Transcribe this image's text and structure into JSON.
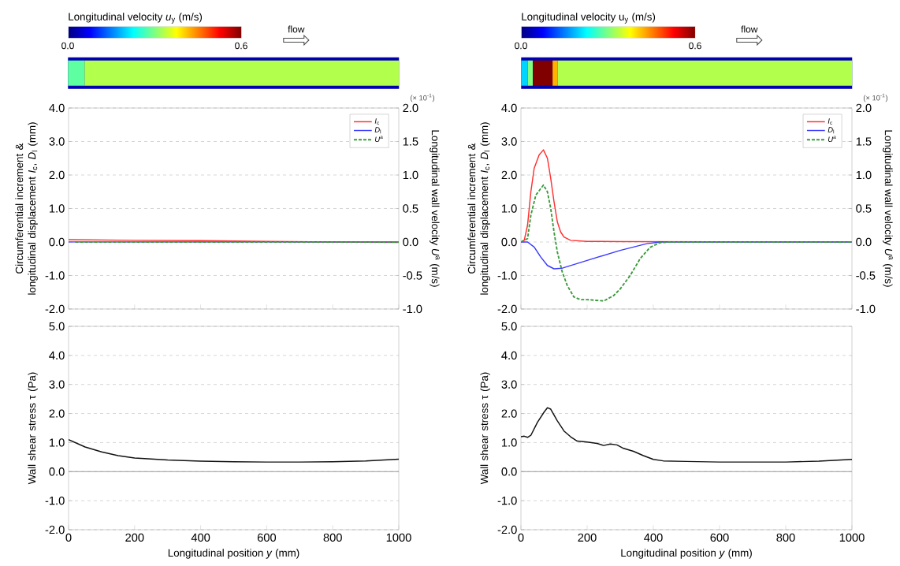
{
  "chart_data": [
    {
      "type": "other",
      "title": "Longitudinal velocity *u*$_{y}$ (m/s)",
      "annotations": [
        "0.0",
        "0.6",
        "flow"
      ]
    },
    {
      "type": "other",
      "title": "Longitudinal velocity u$_{y}$ (m/s)",
      "annotations": [
        "0.0",
        "0.6",
        "flow"
      ]
    },
    {
      "type": "line",
      "ylabel": "Circumferential increment & longitudinal displacement *I*$_{c}$, *D*$_{l}$ (mm)",
      "y2label": "Longitudinal wall velocity *U*$^{a}$ (m/s)",
      "xlim": [
        0,
        1000
      ],
      "xticks": [
        {
          "value": 0,
          "label": null
        },
        {
          "value": 200,
          "label": null
        },
        {
          "value": 400,
          "label": null
        },
        {
          "value": 600,
          "label": null
        },
        {
          "value": 800,
          "label": null
        },
        {
          "value": 1000,
          "label": null
        }
      ],
      "ylim": [
        -2,
        4
      ],
      "yticks": [
        {
          "value": -2,
          "label": "-2.0"
        },
        {
          "value": -1,
          "label": "-1.0"
        },
        {
          "value": 0,
          "label": "0.0"
        },
        {
          "value": 1,
          "label": "1.0"
        },
        {
          "value": 2,
          "label": "2.0"
        },
        {
          "value": 3,
          "label": "3.0"
        },
        {
          "value": 4,
          "label": "4.0"
        }
      ],
      "y2lim": [
        -1,
        2
      ],
      "y2ticks": [
        {
          "value": -1,
          "label": "-1.0"
        },
        {
          "value": -0.5,
          "label": "-0.5"
        },
        {
          "value": 0,
          "label": "0.0"
        },
        {
          "value": 0.5,
          "label": "0.5"
        },
        {
          "value": 1,
          "label": "1.0"
        },
        {
          "value": 1.5,
          "label": "1.5"
        },
        {
          "value": 2,
          "label": "2.0"
        }
      ],
      "tick_labels": "y",
      "grid": "y",
      "legend": "top right",
      "annotations": [
        "(× 10$^{-1}$)"
      ],
      "series": [
        {
          "name": "*I*$_{c}$",
          "color": "#ff3030",
          "x": [
            0,
            200,
            400,
            600,
            800,
            1000
          ],
          "values": [
            0.07,
            0.05,
            0.04,
            0.02,
            0.0,
            -0.01
          ]
        },
        {
          "name": "*D*$_{l}$",
          "color": "#3a3aff",
          "x": [
            0,
            1000
          ],
          "values": [
            0,
            0
          ]
        },
        {
          "name": "*U*$^{a}$",
          "color": "#3a9a3a",
          "axis": "y2",
          "line_style": "dashed",
          "x": [
            20,
            1000
          ],
          "values": [
            0,
            0
          ]
        }
      ]
    },
    {
      "type": "line",
      "ylabel": "Circumferential increment & longitudinal displacement *I*$_{c}$, *D*$_{l}$ (mm)",
      "y2label": "Longitudinal wall velocity *U*$^{a}$ (m/s)",
      "xlim": [
        0,
        1000
      ],
      "xticks": [
        {
          "value": 0,
          "label": null
        },
        {
          "value": 200,
          "label": null
        },
        {
          "value": 400,
          "label": null
        },
        {
          "value": 600,
          "label": null
        },
        {
          "value": 800,
          "label": null
        },
        {
          "value": 1000,
          "label": null
        }
      ],
      "ylim": [
        -2,
        4
      ],
      "yticks": [
        {
          "value": -2,
          "label": "-2.0"
        },
        {
          "value": -1,
          "label": "-1.0"
        },
        {
          "value": 0,
          "label": "0.0"
        },
        {
          "value": 1,
          "label": "1.0"
        },
        {
          "value": 2,
          "label": "2.0"
        },
        {
          "value": 3,
          "label": "3.0"
        },
        {
          "value": 4,
          "label": "4.0"
        }
      ],
      "y2lim": [
        -1,
        2
      ],
      "y2ticks": [
        {
          "value": -1,
          "label": "-1.0"
        },
        {
          "value": -0.5,
          "label": "-0.5"
        },
        {
          "value": 0,
          "label": "0.0"
        },
        {
          "value": 0.5,
          "label": "0.5"
        },
        {
          "value": 1,
          "label": "1.0"
        },
        {
          "value": 1.5,
          "label": "1.5"
        },
        {
          "value": 2,
          "label": "2.0"
        }
      ],
      "tick_labels": "y",
      "grid": "y",
      "legend": "top right",
      "annotations": [
        "(× 10$^{-1}$)"
      ],
      "series": [
        {
          "name": "*I*$_{c}$",
          "color": "#ff3030",
          "x": [
            0,
            10,
            20,
            30,
            40,
            55,
            68,
            80,
            90,
            100,
            110,
            120,
            130,
            150,
            200,
            300,
            1000
          ],
          "values": [
            0,
            0.05,
            0.5,
            1.5,
            2.2,
            2.6,
            2.75,
            2.5,
            1.9,
            1.2,
            0.6,
            0.3,
            0.15,
            0.05,
            0.02,
            0.01,
            0
          ]
        },
        {
          "name": "*D*$_{l}$",
          "color": "#3a3aff",
          "x": [
            0,
            20,
            40,
            60,
            80,
            100,
            125,
            200,
            300,
            380,
            420,
            1000
          ],
          "values": [
            0,
            0,
            -0.15,
            -0.45,
            -0.7,
            -0.8,
            -0.78,
            -0.55,
            -0.25,
            -0.05,
            0,
            0
          ]
        },
        {
          "name": "*U*$^{a}$",
          "color": "#3a9a3a",
          "axis": "y2",
          "line_style": "dashed",
          "x": [
            0,
            20,
            30,
            45,
            68,
            80,
            90,
            100,
            110,
            125,
            140,
            160,
            180,
            200,
            225,
            250,
            280,
            300,
            330,
            360,
            390,
            420,
            450,
            1000
          ],
          "values": [
            0,
            0.05,
            0.4,
            0.7,
            0.85,
            0.75,
            0.5,
            0.15,
            -0.15,
            -0.45,
            -0.65,
            -0.82,
            -0.86,
            -0.86,
            -0.87,
            -0.88,
            -0.8,
            -0.7,
            -0.5,
            -0.25,
            -0.08,
            -0.01,
            0,
            0
          ]
        }
      ]
    },
    {
      "type": "line",
      "ylabel": "Wall shear stress τ (Pa)",
      "xlabel": "Longitudinal position *y* (mm)",
      "xlim": [
        0,
        1000
      ],
      "xticks": [
        0,
        200,
        400,
        600,
        800,
        1000
      ],
      "ylim": [
        -2,
        5
      ],
      "yticks": [
        {
          "value": -2,
          "label": "-2.0"
        },
        {
          "value": -1,
          "label": "-1.0"
        },
        {
          "value": 0,
          "label": "0.0"
        },
        {
          "value": 1,
          "label": "1.0"
        },
        {
          "value": 2,
          "label": "2.0"
        },
        {
          "value": 3,
          "label": "3.0"
        },
        {
          "value": 4,
          "label": "4.0"
        },
        {
          "value": 5,
          "label": "5.0"
        }
      ],
      "grid": "y",
      "ref_lines": [
        {
          "axis": "y",
          "value": 0,
          "color": "#999999"
        }
      ],
      "series": [
        {
          "color": "#111111",
          "x": [
            0,
            50,
            100,
            150,
            200,
            300,
            400,
            500,
            600,
            700,
            800,
            900,
            1000
          ],
          "values": [
            1.1,
            0.85,
            0.68,
            0.55,
            0.47,
            0.4,
            0.36,
            0.34,
            0.33,
            0.33,
            0.34,
            0.37,
            0.43
          ]
        }
      ]
    },
    {
      "type": "line",
      "ylabel": "Wall shear stress τ (Pa)",
      "xlabel": "Longitudinal position *y* (mm)",
      "xlim": [
        0,
        1000
      ],
      "xticks": [
        0,
        200,
        400,
        600,
        800,
        1000
      ],
      "ylim": [
        -2,
        5
      ],
      "yticks": [
        {
          "value": -2,
          "label": "-2.0"
        },
        {
          "value": -1,
          "label": "-1.0"
        },
        {
          "value": 0,
          "label": "0.0"
        },
        {
          "value": 1,
          "label": "1.0"
        },
        {
          "value": 2,
          "label": "2.0"
        },
        {
          "value": 3,
          "label": "3.0"
        },
        {
          "value": 4,
          "label": "4.0"
        },
        {
          "value": 5,
          "label": "5.0"
        }
      ],
      "grid": "y",
      "ref_lines": [
        {
          "axis": "y",
          "value": 0,
          "color": "#999999"
        }
      ],
      "series": [
        {
          "color": "#111111",
          "x": [
            0,
            10,
            20,
            30,
            50,
            70,
            80,
            90,
            110,
            130,
            150,
            170,
            200,
            230,
            250,
            270,
            290,
            310,
            340,
            370,
            400,
            430,
            500,
            600,
            700,
            800,
            900,
            1000
          ],
          "values": [
            1.2,
            1.22,
            1.18,
            1.25,
            1.7,
            2.05,
            2.2,
            2.15,
            1.75,
            1.4,
            1.2,
            1.05,
            1.02,
            0.97,
            0.9,
            0.95,
            0.92,
            0.8,
            0.7,
            0.55,
            0.42,
            0.37,
            0.35,
            0.33,
            0.33,
            0.33,
            0.36,
            0.42
          ]
        }
      ]
    }
  ]
}
